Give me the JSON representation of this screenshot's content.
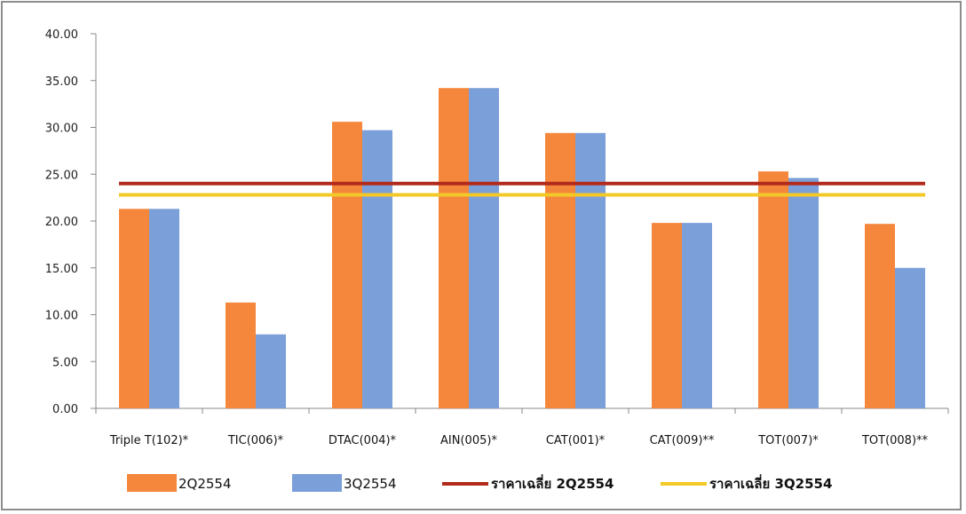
{
  "chart_data": {
    "type": "bar",
    "categories": [
      "Triple T(102)*",
      "TIC(006)*",
      "DTAC(004)*",
      "AIN(005)*",
      "CAT(001)*",
      "CAT(009)**",
      "TOT(007)*",
      "TOT(008)**"
    ],
    "series": [
      {
        "name": "2Q2554",
        "color": "#f5873c",
        "values": [
          21.3,
          11.3,
          30.6,
          34.2,
          29.4,
          19.8,
          25.3,
          19.7
        ]
      },
      {
        "name": "3Q2554",
        "color": "#7b9fd8",
        "values": [
          21.3,
          7.9,
          29.7,
          34.2,
          29.4,
          19.8,
          24.6,
          15.0
        ]
      }
    ],
    "lines": [
      {
        "name": "ราคาเฉลี่ย 2Q2554",
        "color": "#b22a1c",
        "value": 24.0
      },
      {
        "name": "ราคาเฉลี่ย 3Q2554",
        "color": "#f2c927",
        "value": 22.8
      }
    ],
    "yticks": [
      "0.00",
      "5.00",
      "10.00",
      "15.00",
      "20.00",
      "25.00",
      "30.00",
      "35.00",
      "40.00"
    ],
    "ylim": [
      0,
      40
    ],
    "grid": false,
    "legend_position": "bottom",
    "title": "",
    "xlabel": "",
    "ylabel": ""
  }
}
